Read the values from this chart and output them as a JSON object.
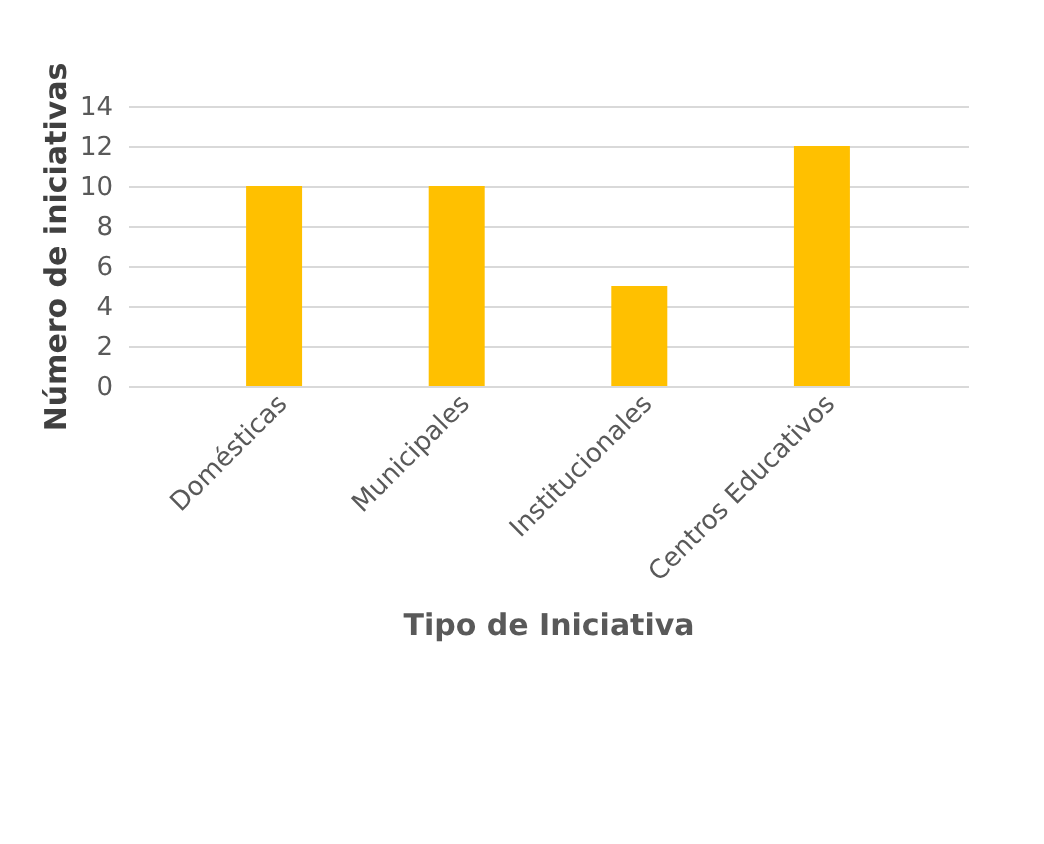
{
  "chart_data": {
    "type": "bar",
    "xlabel": "Tipo de Iniciativa",
    "ylabel": "Número de iniciativas",
    "categories": [
      "Domésticas",
      "Municipales",
      "Institucionales",
      "Centros Educativos"
    ],
    "values": [
      10,
      10,
      5,
      12
    ],
    "color": "#ffc000",
    "ylim": [
      0,
      14
    ],
    "yticks": [
      0,
      2,
      4,
      6,
      8,
      10,
      12,
      14
    ],
    "grid": "y"
  }
}
